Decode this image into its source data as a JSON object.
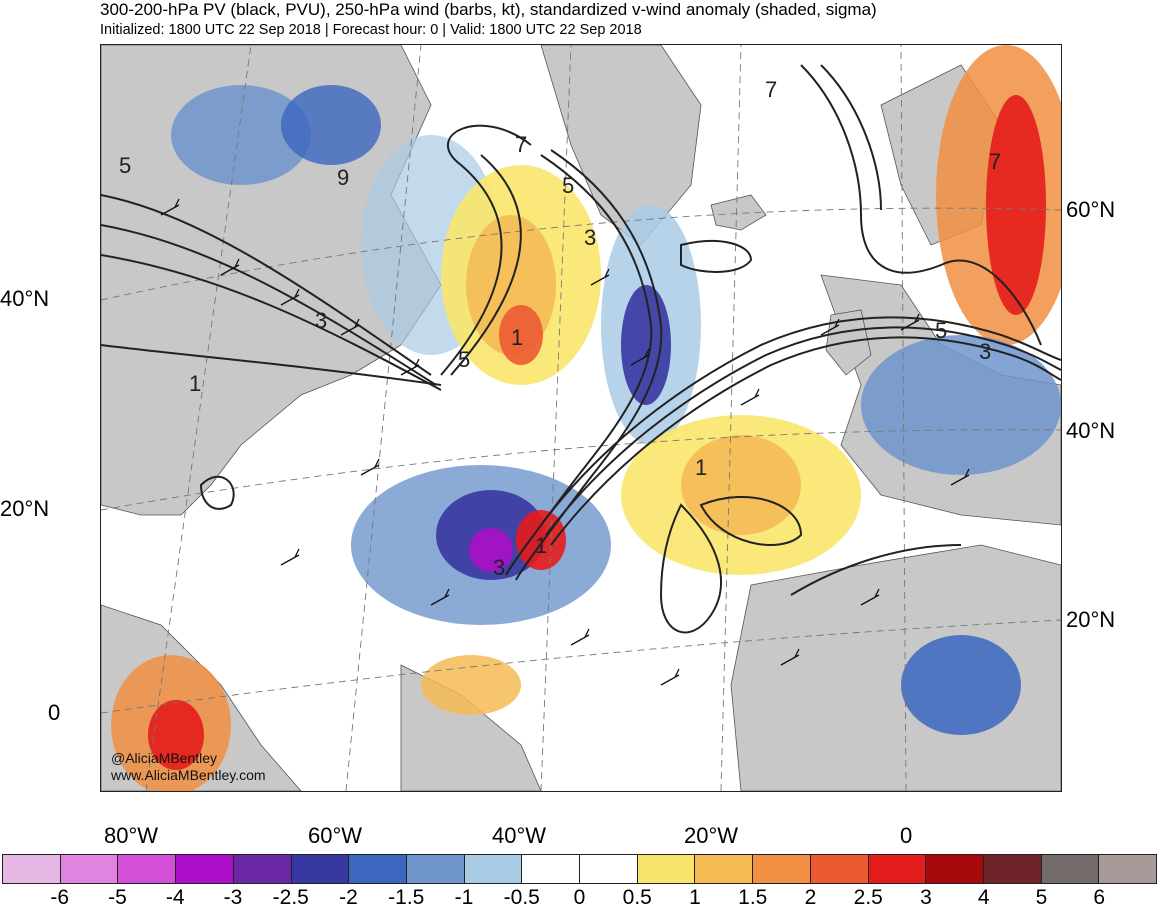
{
  "header": {
    "title": "300-200-hPa PV (black, PVU), 250-hPa wind (barbs, kt), standardized v-wind anomaly (shaded, sigma)",
    "subtitle": "Initialized: 1800 UTC 22 Sep 2018 | Forecast hour: 0 | Valid: 1800 UTC 22 Sep 2018"
  },
  "map": {
    "credit_handle": "@AliciaMBentley",
    "credit_url": "www.AliciaMBentley.com",
    "lat_labels_left": [
      "40°N",
      "20°N",
      "0"
    ],
    "lat_labels_right": [
      "60°N",
      "40°N",
      "20°N"
    ],
    "lon_labels": [
      "80°W",
      "60°W",
      "40°W",
      "20°W",
      "0"
    ],
    "pv_contour_labels": [
      "5",
      "9",
      "3",
      "1",
      "7",
      "5",
      "3",
      "1",
      "5",
      "1",
      "3",
      "1",
      "7",
      "7",
      "5",
      "3"
    ],
    "colors": {
      "land": "#c8c8c8",
      "contour": "#222222",
      "graticule": "#777777"
    }
  },
  "colorbar": {
    "colors": [
      "#e7b7e5",
      "#e183e1",
      "#d450d8",
      "#ab10c8",
      "#6a27a6",
      "#3737a0",
      "#3c67bf",
      "#6f95cc",
      "#a9cbe6",
      "#ffffff",
      "#ffffff",
      "#f9e56c",
      "#f4bb55",
      "#f18f43",
      "#ec5a32",
      "#e41c1b",
      "#a6080c",
      "#6e2428",
      "#736a6a",
      "#a79a99"
    ],
    "labels": [
      "-6",
      "-5",
      "-4",
      "-3",
      "-2.5",
      "-2",
      "-1.5",
      "-1",
      "-0.5",
      "0",
      "0.5",
      "1",
      "1.5",
      "2",
      "2.5",
      "3",
      "4",
      "5",
      "6"
    ]
  }
}
